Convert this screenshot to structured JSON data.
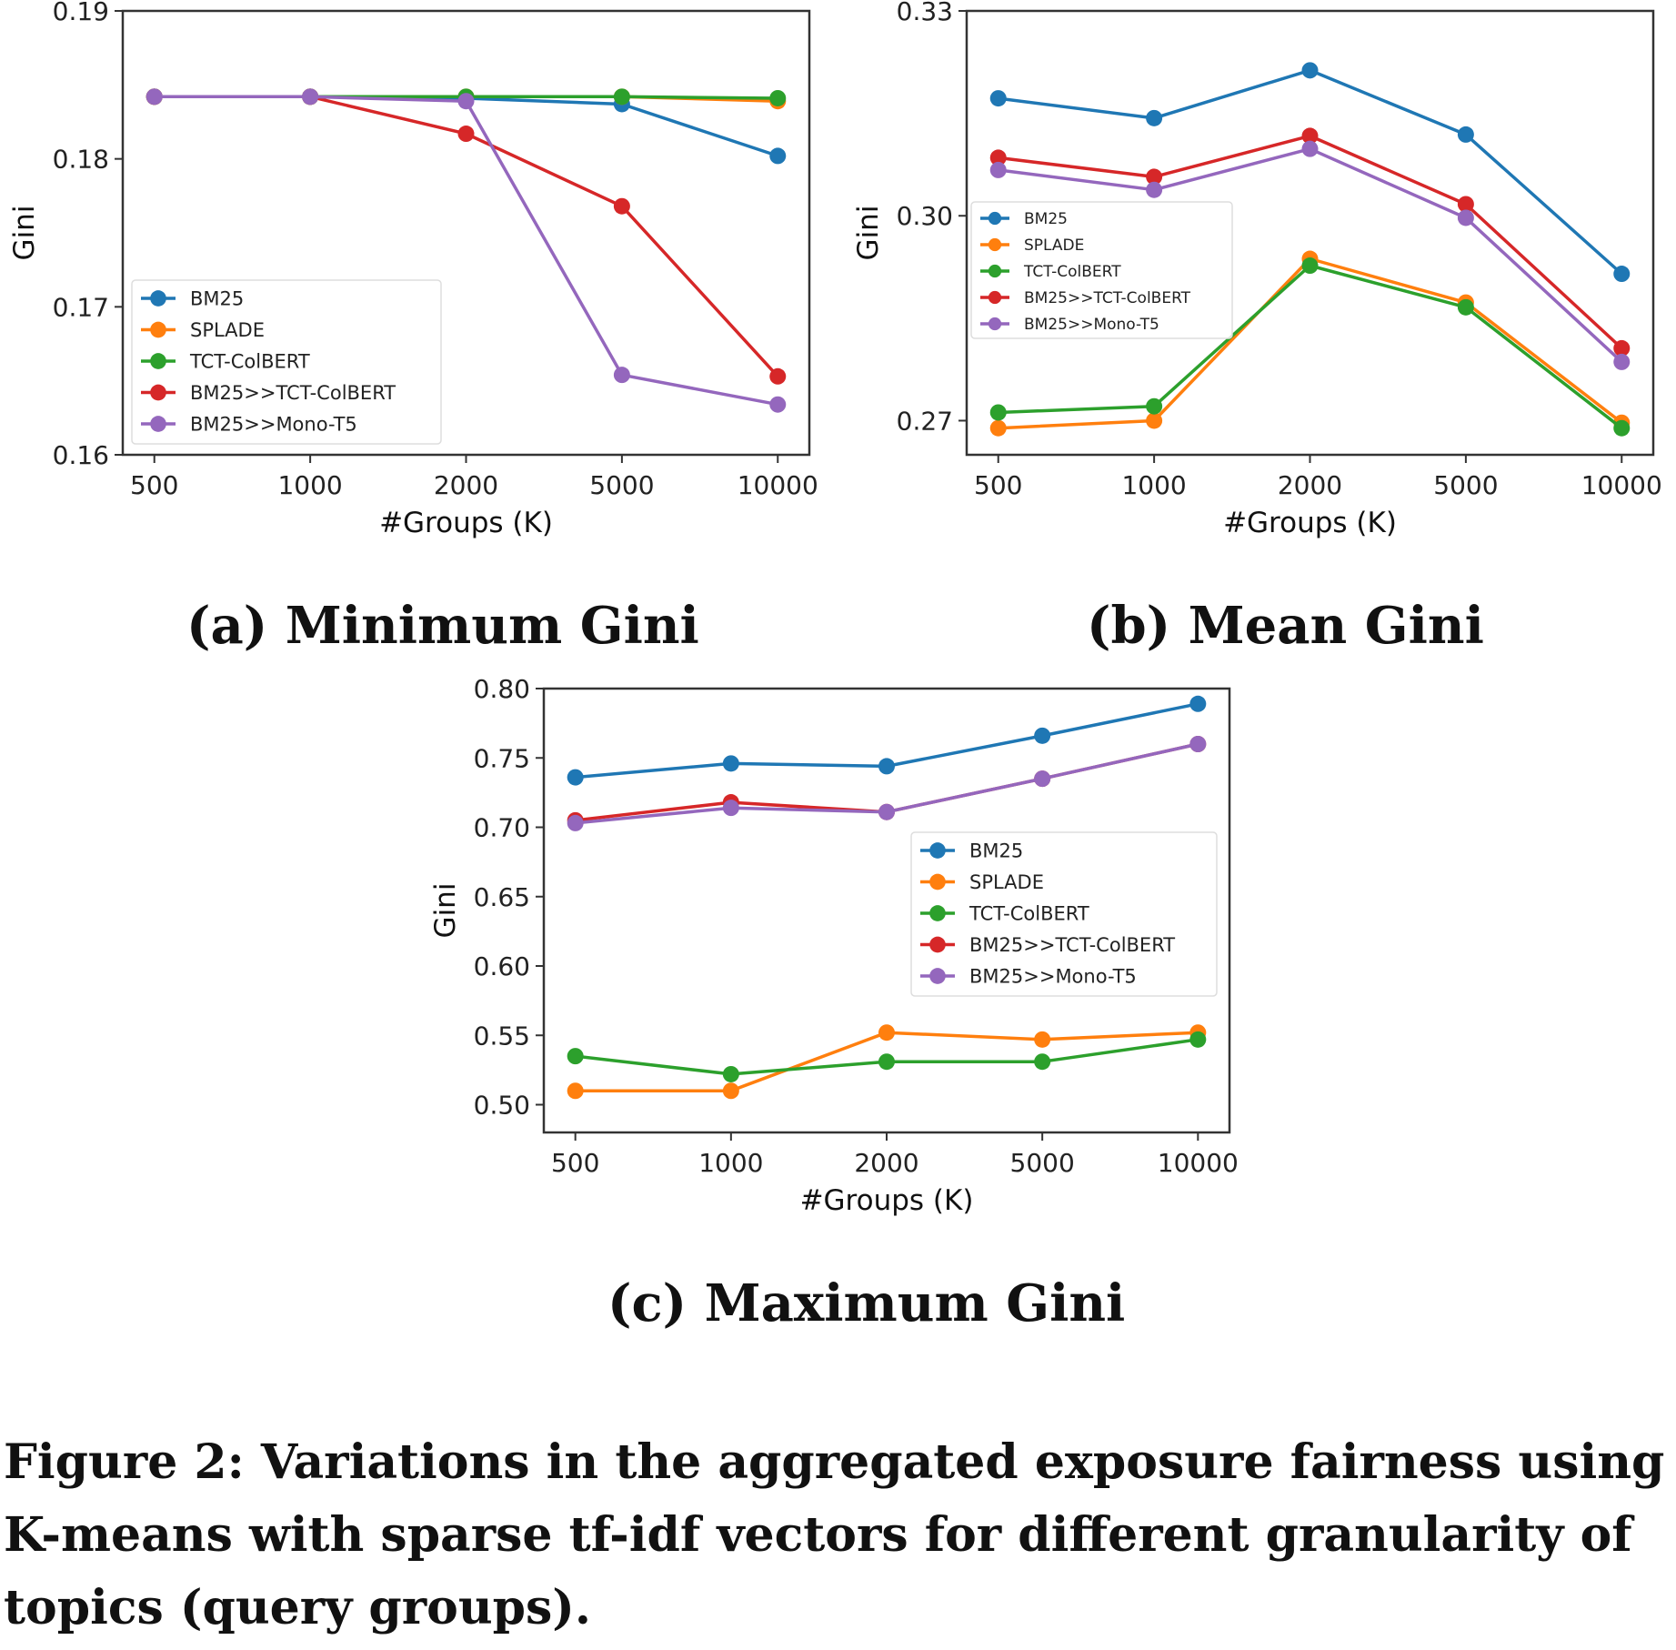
{
  "figure_caption": "Figure 2: Variations in the aggregated exposure fairness using K-means with sparse tf-idf vectors for different granularity of topics (query groups).",
  "subcaptions": {
    "a": "(a) Minimum Gini",
    "b": "(b) Mean Gini",
    "c": "(c) Maximum Gini"
  },
  "colors": {
    "BM25": "#1f77b4",
    "SPLADE": "#ff7f0e",
    "TCT-ColBERT": "#2ca02c",
    "BM25>>TCT-ColBERT": "#d62728",
    "BM25>>Mono-T5": "#9467bd"
  },
  "chart_data": [
    {
      "type": "line",
      "x": [
        "500",
        "1000",
        "2000",
        "5000",
        "10000"
      ],
      "xlabel": "#Groups (K)",
      "ylabel": "Gini",
      "ylim": [
        0.16,
        0.19
      ],
      "yticks": [
        "0.16",
        "0.17",
        "0.18",
        "0.19"
      ],
      "legend": "lower-left",
      "grid": false,
      "series": [
        {
          "name": "BM25",
          "values": [
            0.1842,
            0.1842,
            0.1841,
            0.1837,
            0.1802
          ]
        },
        {
          "name": "SPLADE",
          "values": [
            0.1842,
            0.1842,
            0.1842,
            0.1842,
            0.1839
          ]
        },
        {
          "name": "TCT-ColBERT",
          "values": [
            0.1842,
            0.1842,
            0.1842,
            0.1842,
            0.1841
          ]
        },
        {
          "name": "BM25>>TCT-ColBERT",
          "values": [
            0.1842,
            0.1842,
            0.1817,
            0.1768,
            0.1653
          ]
        },
        {
          "name": "BM25>>Mono-T5",
          "values": [
            0.1842,
            0.1842,
            0.1839,
            0.1654,
            0.1634
          ]
        }
      ]
    },
    {
      "type": "line",
      "x": [
        "500",
        "1000",
        "2000",
        "5000",
        "10000"
      ],
      "xlabel": "#Groups (K)",
      "ylabel": "Gini",
      "ylim": [
        0.265,
        0.33
      ],
      "yticks": [
        "0.27",
        "0.30",
        "0.33"
      ],
      "legend": "center-left",
      "grid": false,
      "series": [
        {
          "name": "BM25",
          "values": [
            0.3172,
            0.3143,
            0.3213,
            0.3119,
            0.2915
          ]
        },
        {
          "name": "SPLADE",
          "values": [
            0.2689,
            0.27,
            0.2937,
            0.2873,
            0.2697
          ]
        },
        {
          "name": "TCT-ColBERT",
          "values": [
            0.2712,
            0.2721,
            0.2927,
            0.2866,
            0.2689
          ]
        },
        {
          "name": "BM25>>TCT-ColBERT",
          "values": [
            0.3085,
            0.3057,
            0.3117,
            0.3017,
            0.2806
          ]
        },
        {
          "name": "BM25>>Mono-T5",
          "values": [
            0.3067,
            0.3038,
            0.3098,
            0.2997,
            0.2786
          ]
        }
      ]
    },
    {
      "type": "line",
      "x": [
        "500",
        "1000",
        "2000",
        "5000",
        "10000"
      ],
      "xlabel": "#Groups (K)",
      "ylabel": "Gini",
      "ylim": [
        0.48,
        0.8
      ],
      "yticks": [
        "0.50",
        "0.55",
        "0.60",
        "0.65",
        "0.70",
        "0.75",
        "0.80"
      ],
      "legend": "center-right",
      "grid": false,
      "series": [
        {
          "name": "BM25",
          "values": [
            0.736,
            0.746,
            0.744,
            0.766,
            0.789
          ]
        },
        {
          "name": "SPLADE",
          "values": [
            0.51,
            0.51,
            0.552,
            0.547,
            0.552
          ]
        },
        {
          "name": "TCT-ColBERT",
          "values": [
            0.535,
            0.522,
            0.531,
            0.531,
            0.547
          ]
        },
        {
          "name": "BM25>>TCT-ColBERT",
          "values": [
            0.705,
            0.718,
            0.711,
            0.735,
            0.76
          ]
        },
        {
          "name": "BM25>>Mono-T5",
          "values": [
            0.703,
            0.714,
            0.711,
            0.735,
            0.76
          ]
        }
      ]
    }
  ]
}
